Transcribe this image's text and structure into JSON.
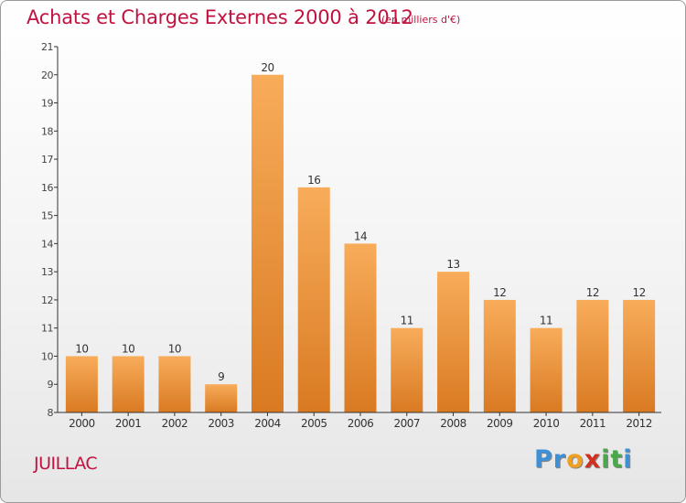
{
  "title": "Achats et Charges Externes 2000 à 2012",
  "subtitle": "(en milliers d'€)",
  "place": "JUILLAC",
  "logo": {
    "letters": [
      "P",
      "r",
      "o",
      "x",
      "i",
      "t",
      "i"
    ],
    "colors": [
      "#3d8fd6",
      "#3d8fd6",
      "#f0a020",
      "#d0301f",
      "#4aa84a",
      "#4aa84a",
      "#3d8fd6"
    ]
  },
  "colors": {
    "bar_light": "#f8ac5a",
    "bar_dark": "#d97a22",
    "title": "#c0123f",
    "axis": "#333333"
  },
  "chart_data": {
    "type": "bar",
    "categories": [
      "2000",
      "2001",
      "2002",
      "2003",
      "2004",
      "2005",
      "2006",
      "2007",
      "2008",
      "2009",
      "2010",
      "2011",
      "2012"
    ],
    "values": [
      10,
      10,
      10,
      9,
      20,
      16,
      14,
      11,
      13,
      12,
      11,
      12,
      12
    ],
    "title": "Achats et Charges Externes 2000 à 2012",
    "subtitle": "(en milliers d'€)",
    "ylim": [
      8,
      21
    ],
    "yticks": [
      8,
      9,
      10,
      11,
      12,
      13,
      14,
      15,
      16,
      17,
      18,
      19,
      20,
      21
    ],
    "grid": false,
    "data_labels": true
  }
}
